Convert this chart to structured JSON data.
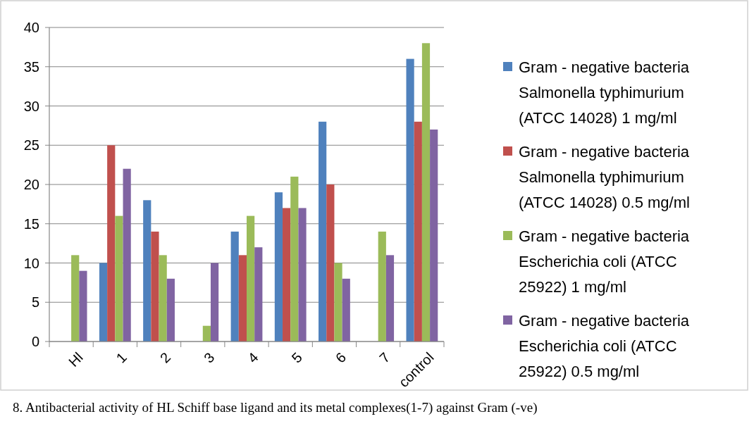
{
  "chart_data": {
    "type": "bar",
    "categories": [
      "Hl",
      "1",
      "2",
      "3",
      "4",
      "5",
      "6",
      "7",
      "control"
    ],
    "series": [
      {
        "name": "Gram - negative bacteria Salmonella typhimurium (ATCC 14028) 1 mg/ml",
        "color": "#4f81bd",
        "values": [
          0,
          10,
          18,
          0,
          14,
          19,
          28,
          0,
          36
        ]
      },
      {
        "name": "Gram - negative bacteria Salmonella typhimurium (ATCC 14028) 0.5 mg/ml",
        "color": "#c0504d",
        "values": [
          0,
          25,
          14,
          0,
          11,
          17,
          20,
          0,
          28
        ]
      },
      {
        "name": "Gram - negative bacteria Escherichia coli (ATCC 25922) 1 mg/ml",
        "color": "#9bbb59",
        "values": [
          11,
          16,
          11,
          2,
          16,
          21,
          10,
          14,
          38
        ]
      },
      {
        "name": "Gram - negative bacteria Escherichia coli (ATCC 25922) 0.5 mg/ml",
        "color": "#8064a2",
        "values": [
          9,
          22,
          8,
          10,
          12,
          17,
          8,
          11,
          27
        ]
      }
    ],
    "ylim": [
      0,
      40
    ],
    "yticks": [
      0,
      5,
      10,
      15,
      20,
      25,
      30,
      35,
      40
    ],
    "grid": "y",
    "legend": "right",
    "annotations": [
      "8. Antibacterial activity of HL Schiff base  ligand and its metal complexes(1-7) against Gram (-ve)"
    ]
  }
}
